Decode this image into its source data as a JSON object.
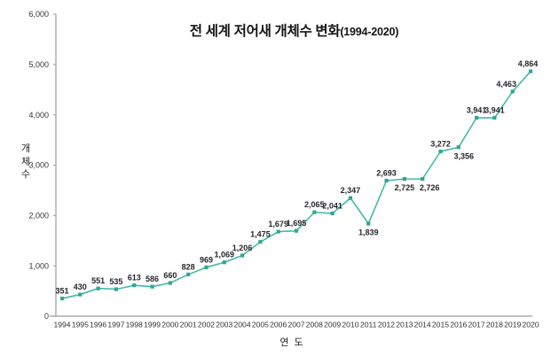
{
  "title": {
    "main": "전 세계 저어새 개체수 변화",
    "range": "(1994-2020)"
  },
  "axes": {
    "y_title": "개체수",
    "x_title": "연도"
  },
  "chart_data": {
    "type": "line",
    "title": "전 세계 저어새 개체수 변화(1994-2020)",
    "xlabel": "연도",
    "ylabel": "개체수",
    "x": [
      1994,
      1995,
      1996,
      1997,
      1998,
      1999,
      2000,
      2001,
      2002,
      2003,
      2004,
      2005,
      2006,
      2007,
      2008,
      2009,
      2010,
      2011,
      2012,
      2013,
      2014,
      2015,
      2016,
      2017,
      2018,
      2019,
      2020
    ],
    "values": [
      351,
      430,
      551,
      535,
      613,
      586,
      660,
      828,
      969,
      1069,
      1206,
      1475,
      1679,
      1695,
      2065,
      2041,
      2347,
      1839,
      2693,
      2725,
      2726,
      3272,
      3356,
      3941,
      3941,
      4463,
      4864
    ],
    "ylim": [
      0,
      6000
    ],
    "ytick_step": 1000,
    "grid": false,
    "legend": false,
    "point_labels": true,
    "labels_below_years": [
      2011,
      2013,
      2014,
      2016
    ],
    "line_color": "#45b9a7",
    "marker_color": "#2ea795",
    "label_color": "#26262e",
    "axis_color": "#9b9b9b",
    "tick_text_color": "#333333"
  }
}
